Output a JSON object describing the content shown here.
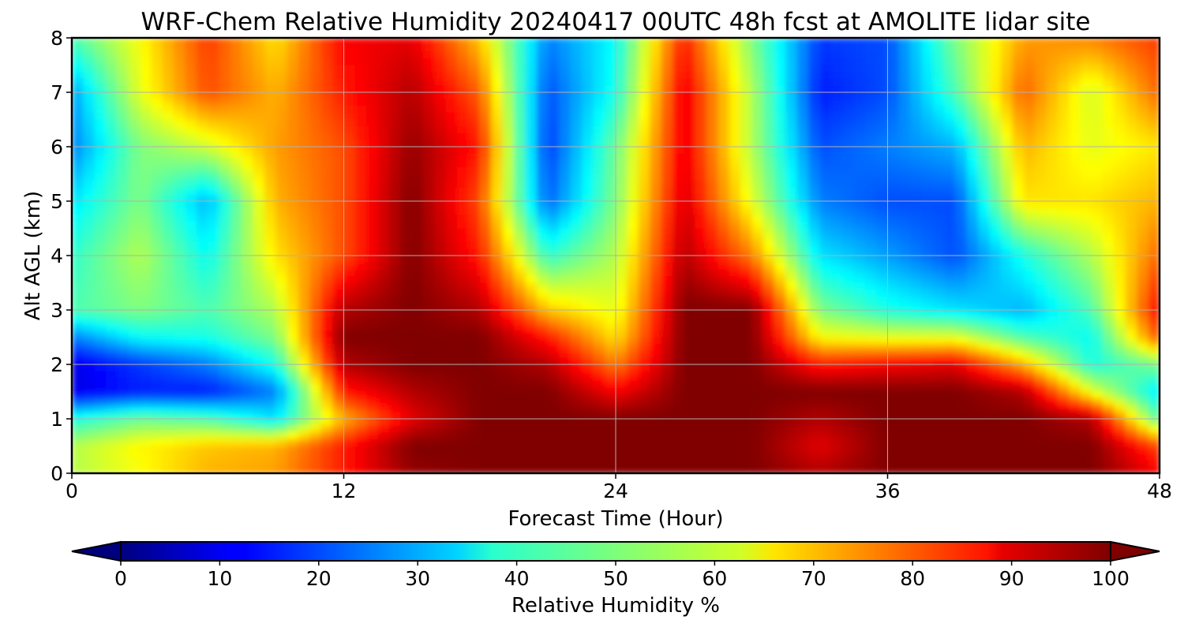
{
  "chart_data": {
    "type": "heatmap",
    "title": "WRF-Chem Relative Humidity 20240417 00UTC 48h fcst at AMOLITE lidar site",
    "xlabel": "Forecast Time (Hour)",
    "ylabel": "Alt AGL (km)",
    "xlim": [
      0,
      48
    ],
    "ylim": [
      0,
      8
    ],
    "xticks": [
      "0",
      "12",
      "24",
      "36",
      "48"
    ],
    "yticks": [
      "0",
      "1",
      "2",
      "3",
      "4",
      "5",
      "6",
      "7",
      "8"
    ],
    "grid": true,
    "colormap": "jet",
    "value_range": [
      0,
      100
    ],
    "colorbar": {
      "label": "Relative Humidity %",
      "ticks": [
        "0",
        "10",
        "20",
        "30",
        "40",
        "50",
        "60",
        "70",
        "80",
        "90",
        "100"
      ],
      "extend": "both",
      "orientation": "horizontal",
      "placement": "bottom"
    },
    "x": [
      0,
      3,
      6,
      9,
      12,
      15,
      18,
      21,
      24,
      27,
      30,
      33,
      36,
      39,
      42,
      45,
      48
    ],
    "y": [
      0,
      0.5,
      1,
      1.5,
      2,
      2.5,
      3,
      4,
      5,
      6,
      7,
      8
    ],
    "z": [
      [
        55,
        62,
        70,
        72,
        85,
        98,
        100,
        100,
        100,
        100,
        100,
        95,
        100,
        100,
        100,
        100,
        88
      ],
      [
        55,
        63,
        68,
        70,
        85,
        100,
        100,
        100,
        100,
        100,
        100,
        90,
        100,
        100,
        100,
        100,
        80
      ],
      [
        40,
        48,
        45,
        35,
        70,
        90,
        100,
        100,
        100,
        100,
        100,
        95,
        100,
        100,
        100,
        95,
        45
      ],
      [
        10,
        15,
        15,
        25,
        85,
        95,
        100,
        100,
        88,
        100,
        100,
        100,
        100,
        100,
        95,
        60,
        35
      ],
      [
        10,
        18,
        25,
        40,
        95,
        100,
        100,
        95,
        75,
        100,
        100,
        85,
        88,
        90,
        70,
        40,
        50
      ],
      [
        25,
        38,
        40,
        50,
        100,
        100,
        100,
        85,
        65,
        100,
        100,
        62,
        60,
        60,
        45,
        38,
        80
      ],
      [
        45,
        50,
        45,
        55,
        95,
        100,
        95,
        68,
        60,
        100,
        100,
        50,
        40,
        35,
        30,
        45,
        88
      ],
      [
        42,
        55,
        38,
        65,
        80,
        100,
        85,
        42,
        55,
        95,
        75,
        35,
        28,
        20,
        40,
        55,
        78
      ],
      [
        35,
        50,
        30,
        70,
        80,
        100,
        80,
        22,
        50,
        92,
        60,
        25,
        20,
        20,
        65,
        65,
        70
      ],
      [
        25,
        50,
        58,
        72,
        80,
        98,
        85,
        18,
        48,
        90,
        55,
        20,
        25,
        30,
        70,
        60,
        65
      ],
      [
        28,
        60,
        80,
        70,
        85,
        95,
        78,
        20,
        40,
        90,
        55,
        15,
        20,
        45,
        78,
        58,
        78
      ],
      [
        45,
        62,
        82,
        65,
        88,
        90,
        68,
        25,
        38,
        85,
        50,
        18,
        20,
        50,
        72,
        75,
        82
      ]
    ]
  }
}
